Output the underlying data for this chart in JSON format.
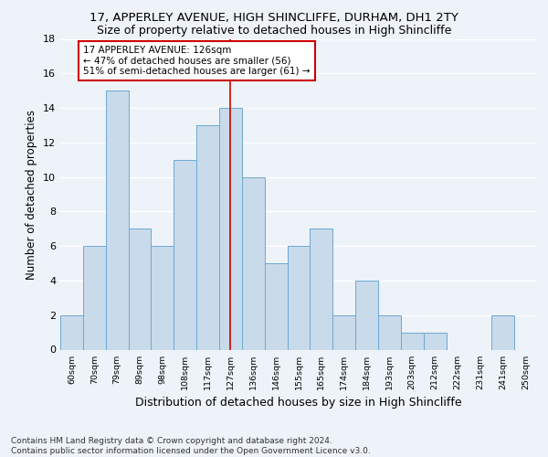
{
  "title1": "17, APPERLEY AVENUE, HIGH SHINCLIFFE, DURHAM, DH1 2TY",
  "title2": "Size of property relative to detached houses in High Shincliffe",
  "xlabel": "Distribution of detached houses by size in High Shincliffe",
  "ylabel": "Number of detached properties",
  "footer1": "Contains HM Land Registry data © Crown copyright and database right 2024.",
  "footer2": "Contains public sector information licensed under the Open Government Licence v3.0.",
  "categories": [
    "60sqm",
    "70sqm",
    "79sqm",
    "89sqm",
    "98sqm",
    "108sqm",
    "117sqm",
    "127sqm",
    "136sqm",
    "146sqm",
    "155sqm",
    "165sqm",
    "174sqm",
    "184sqm",
    "193sqm",
    "203sqm",
    "212sqm",
    "222sqm",
    "231sqm",
    "241sqm",
    "250sqm"
  ],
  "values": [
    2,
    6,
    15,
    7,
    6,
    11,
    13,
    14,
    10,
    5,
    6,
    7,
    2,
    4,
    2,
    1,
    1,
    0,
    0,
    2,
    0
  ],
  "bar_color": "#c9daea",
  "bar_edge_color": "#6aaad4",
  "vline_x": 7,
  "vline_color": "#cc0000",
  "annotation_text_line1": "17 APPERLEY AVENUE: 126sqm",
  "annotation_text_line2": "← 47% of detached houses are smaller (56)",
  "annotation_text_line3": "51% of semi-detached houses are larger (61) →",
  "annotation_box_color": "#cc0000",
  "ylim": [
    0,
    18
  ],
  "yticks": [
    0,
    2,
    4,
    6,
    8,
    10,
    12,
    14,
    16,
    18
  ],
  "background_color": "#eef2f9",
  "grid_color": "#ffffff",
  "title1_fontsize": 9.5,
  "title2_fontsize": 9,
  "xlabel_fontsize": 9,
  "ylabel_fontsize": 8.5,
  "footer_fontsize": 6.5
}
